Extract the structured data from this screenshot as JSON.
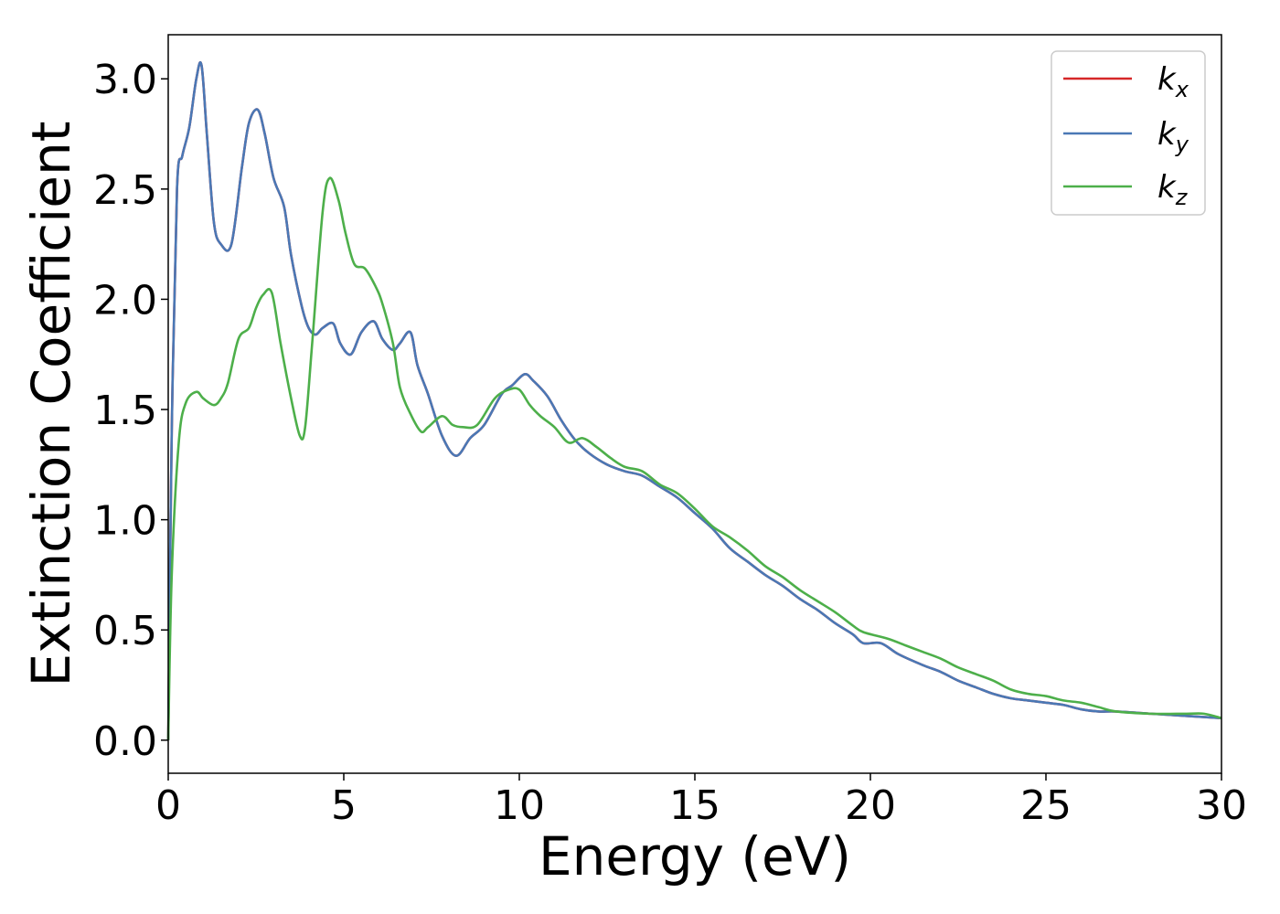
{
  "chart_data": {
    "type": "line",
    "title": "",
    "xlabel": "Energy (eV)",
    "ylabel": "Extinction Coefficient",
    "xlim": [
      0,
      30
    ],
    "ylim": [
      -0.15,
      3.2
    ],
    "xticks": [
      0,
      5,
      10,
      15,
      20,
      25,
      30
    ],
    "yticks": [
      0.0,
      0.5,
      1.0,
      1.5,
      2.0,
      2.5,
      3.0
    ],
    "xtick_labels": [
      "0",
      "5",
      "10",
      "15",
      "20",
      "25",
      "30"
    ],
    "ytick_labels": [
      "0.0",
      "0.5",
      "1.0",
      "1.5",
      "2.0",
      "2.5",
      "3.0"
    ],
    "grid": false,
    "legend_position": "top-right",
    "series": [
      {
        "name": "k_x",
        "label_base": "k",
        "label_sub": "x",
        "color": "#d62728",
        "x": [
          0,
          0.1,
          0.25,
          0.4,
          0.6,
          0.8,
          0.95,
          1.1,
          1.3,
          1.5,
          1.8,
          2.1,
          2.3,
          2.55,
          2.75,
          3.0,
          3.3,
          3.5,
          3.8,
          4.0,
          4.2,
          4.4,
          4.7,
          4.9,
          5.2,
          5.5,
          5.85,
          6.1,
          6.4,
          6.6,
          6.9,
          7.1,
          7.4,
          7.8,
          8.2,
          8.6,
          9.0,
          9.5,
          9.8,
          10.15,
          10.4,
          10.8,
          11.2,
          11.6,
          12.0,
          12.5,
          13.0,
          13.5,
          14.0,
          14.5,
          15.0,
          15.5,
          16.0,
          16.5,
          17.0,
          17.5,
          18.0,
          18.5,
          19.0,
          19.5,
          19.8,
          20.3,
          20.8,
          21.5,
          22.0,
          22.5,
          23.0,
          23.5,
          24.0,
          24.5,
          25.0,
          25.5,
          26.0,
          26.5,
          27.0,
          28.0,
          29.0,
          30.0
        ],
        "y": [
          0.0,
          1.4,
          2.5,
          2.65,
          2.78,
          3.0,
          3.06,
          2.75,
          2.35,
          2.25,
          2.25,
          2.6,
          2.8,
          2.86,
          2.75,
          2.55,
          2.42,
          2.2,
          1.97,
          1.87,
          1.84,
          1.87,
          1.89,
          1.8,
          1.75,
          1.85,
          1.9,
          1.82,
          1.77,
          1.8,
          1.85,
          1.7,
          1.57,
          1.38,
          1.29,
          1.37,
          1.43,
          1.57,
          1.61,
          1.66,
          1.63,
          1.56,
          1.45,
          1.36,
          1.3,
          1.25,
          1.22,
          1.2,
          1.15,
          1.1,
          1.03,
          0.96,
          0.87,
          0.81,
          0.75,
          0.7,
          0.64,
          0.59,
          0.53,
          0.48,
          0.44,
          0.44,
          0.39,
          0.34,
          0.31,
          0.27,
          0.24,
          0.21,
          0.19,
          0.18,
          0.17,
          0.16,
          0.14,
          0.13,
          0.13,
          0.12,
          0.11,
          0.1
        ]
      },
      {
        "name": "k_y",
        "label_base": "k",
        "label_sub": "y",
        "color": "#4a78b5",
        "x": [
          0,
          0.1,
          0.25,
          0.4,
          0.6,
          0.8,
          0.95,
          1.1,
          1.3,
          1.5,
          1.8,
          2.1,
          2.3,
          2.55,
          2.75,
          3.0,
          3.3,
          3.5,
          3.8,
          4.0,
          4.2,
          4.4,
          4.7,
          4.9,
          5.2,
          5.5,
          5.85,
          6.1,
          6.4,
          6.6,
          6.9,
          7.1,
          7.4,
          7.8,
          8.2,
          8.6,
          9.0,
          9.5,
          9.8,
          10.15,
          10.4,
          10.8,
          11.2,
          11.6,
          12.0,
          12.5,
          13.0,
          13.5,
          14.0,
          14.5,
          15.0,
          15.5,
          16.0,
          16.5,
          17.0,
          17.5,
          18.0,
          18.5,
          19.0,
          19.5,
          19.8,
          20.3,
          20.8,
          21.5,
          22.0,
          22.5,
          23.0,
          23.5,
          24.0,
          24.5,
          25.0,
          25.5,
          26.0,
          26.5,
          27.0,
          28.0,
          29.0,
          30.0
        ],
        "y": [
          0.0,
          1.4,
          2.5,
          2.65,
          2.78,
          3.0,
          3.06,
          2.75,
          2.35,
          2.25,
          2.25,
          2.6,
          2.8,
          2.86,
          2.75,
          2.55,
          2.42,
          2.2,
          1.97,
          1.87,
          1.84,
          1.87,
          1.89,
          1.8,
          1.75,
          1.85,
          1.9,
          1.82,
          1.77,
          1.8,
          1.85,
          1.7,
          1.57,
          1.38,
          1.29,
          1.37,
          1.43,
          1.57,
          1.61,
          1.66,
          1.63,
          1.56,
          1.45,
          1.36,
          1.3,
          1.25,
          1.22,
          1.2,
          1.15,
          1.1,
          1.03,
          0.96,
          0.87,
          0.81,
          0.75,
          0.7,
          0.64,
          0.59,
          0.53,
          0.48,
          0.44,
          0.44,
          0.39,
          0.34,
          0.31,
          0.27,
          0.24,
          0.21,
          0.19,
          0.18,
          0.17,
          0.16,
          0.14,
          0.13,
          0.13,
          0.12,
          0.11,
          0.1
        ]
      },
      {
        "name": "k_z",
        "label_base": "k",
        "label_sub": "z",
        "color": "#4daf4a",
        "x": [
          0,
          0.1,
          0.3,
          0.5,
          0.8,
          1.0,
          1.3,
          1.5,
          1.7,
          2.0,
          2.3,
          2.5,
          2.7,
          2.95,
          3.2,
          3.5,
          3.75,
          3.9,
          4.1,
          4.4,
          4.6,
          4.85,
          5.05,
          5.3,
          5.6,
          5.9,
          6.1,
          6.4,
          6.6,
          6.9,
          7.2,
          7.4,
          7.8,
          8.1,
          8.4,
          8.8,
          9.3,
          9.7,
          10.0,
          10.3,
          10.6,
          11.0,
          11.4,
          11.8,
          12.2,
          12.6,
          13.0,
          13.5,
          14.0,
          14.5,
          15.0,
          15.5,
          16.0,
          16.5,
          17.0,
          17.5,
          18.0,
          18.5,
          19.0,
          19.5,
          19.8,
          20.5,
          21.0,
          21.5,
          22.0,
          22.5,
          23.0,
          23.5,
          24.0,
          24.5,
          25.0,
          25.5,
          26.0,
          26.5,
          27.0,
          28.0,
          29.0,
          29.5,
          30.0
        ],
        "y": [
          0.0,
          0.75,
          1.35,
          1.53,
          1.58,
          1.55,
          1.52,
          1.55,
          1.62,
          1.82,
          1.87,
          1.96,
          2.02,
          2.03,
          1.8,
          1.55,
          1.38,
          1.42,
          1.8,
          2.4,
          2.55,
          2.45,
          2.3,
          2.16,
          2.14,
          2.06,
          1.98,
          1.8,
          1.6,
          1.48,
          1.4,
          1.42,
          1.47,
          1.43,
          1.42,
          1.43,
          1.55,
          1.59,
          1.59,
          1.52,
          1.47,
          1.42,
          1.35,
          1.37,
          1.33,
          1.28,
          1.24,
          1.22,
          1.16,
          1.12,
          1.05,
          0.97,
          0.92,
          0.86,
          0.79,
          0.74,
          0.68,
          0.63,
          0.58,
          0.52,
          0.49,
          0.46,
          0.43,
          0.4,
          0.37,
          0.33,
          0.3,
          0.27,
          0.23,
          0.21,
          0.2,
          0.18,
          0.17,
          0.15,
          0.13,
          0.12,
          0.12,
          0.12,
          0.1
        ]
      }
    ]
  }
}
